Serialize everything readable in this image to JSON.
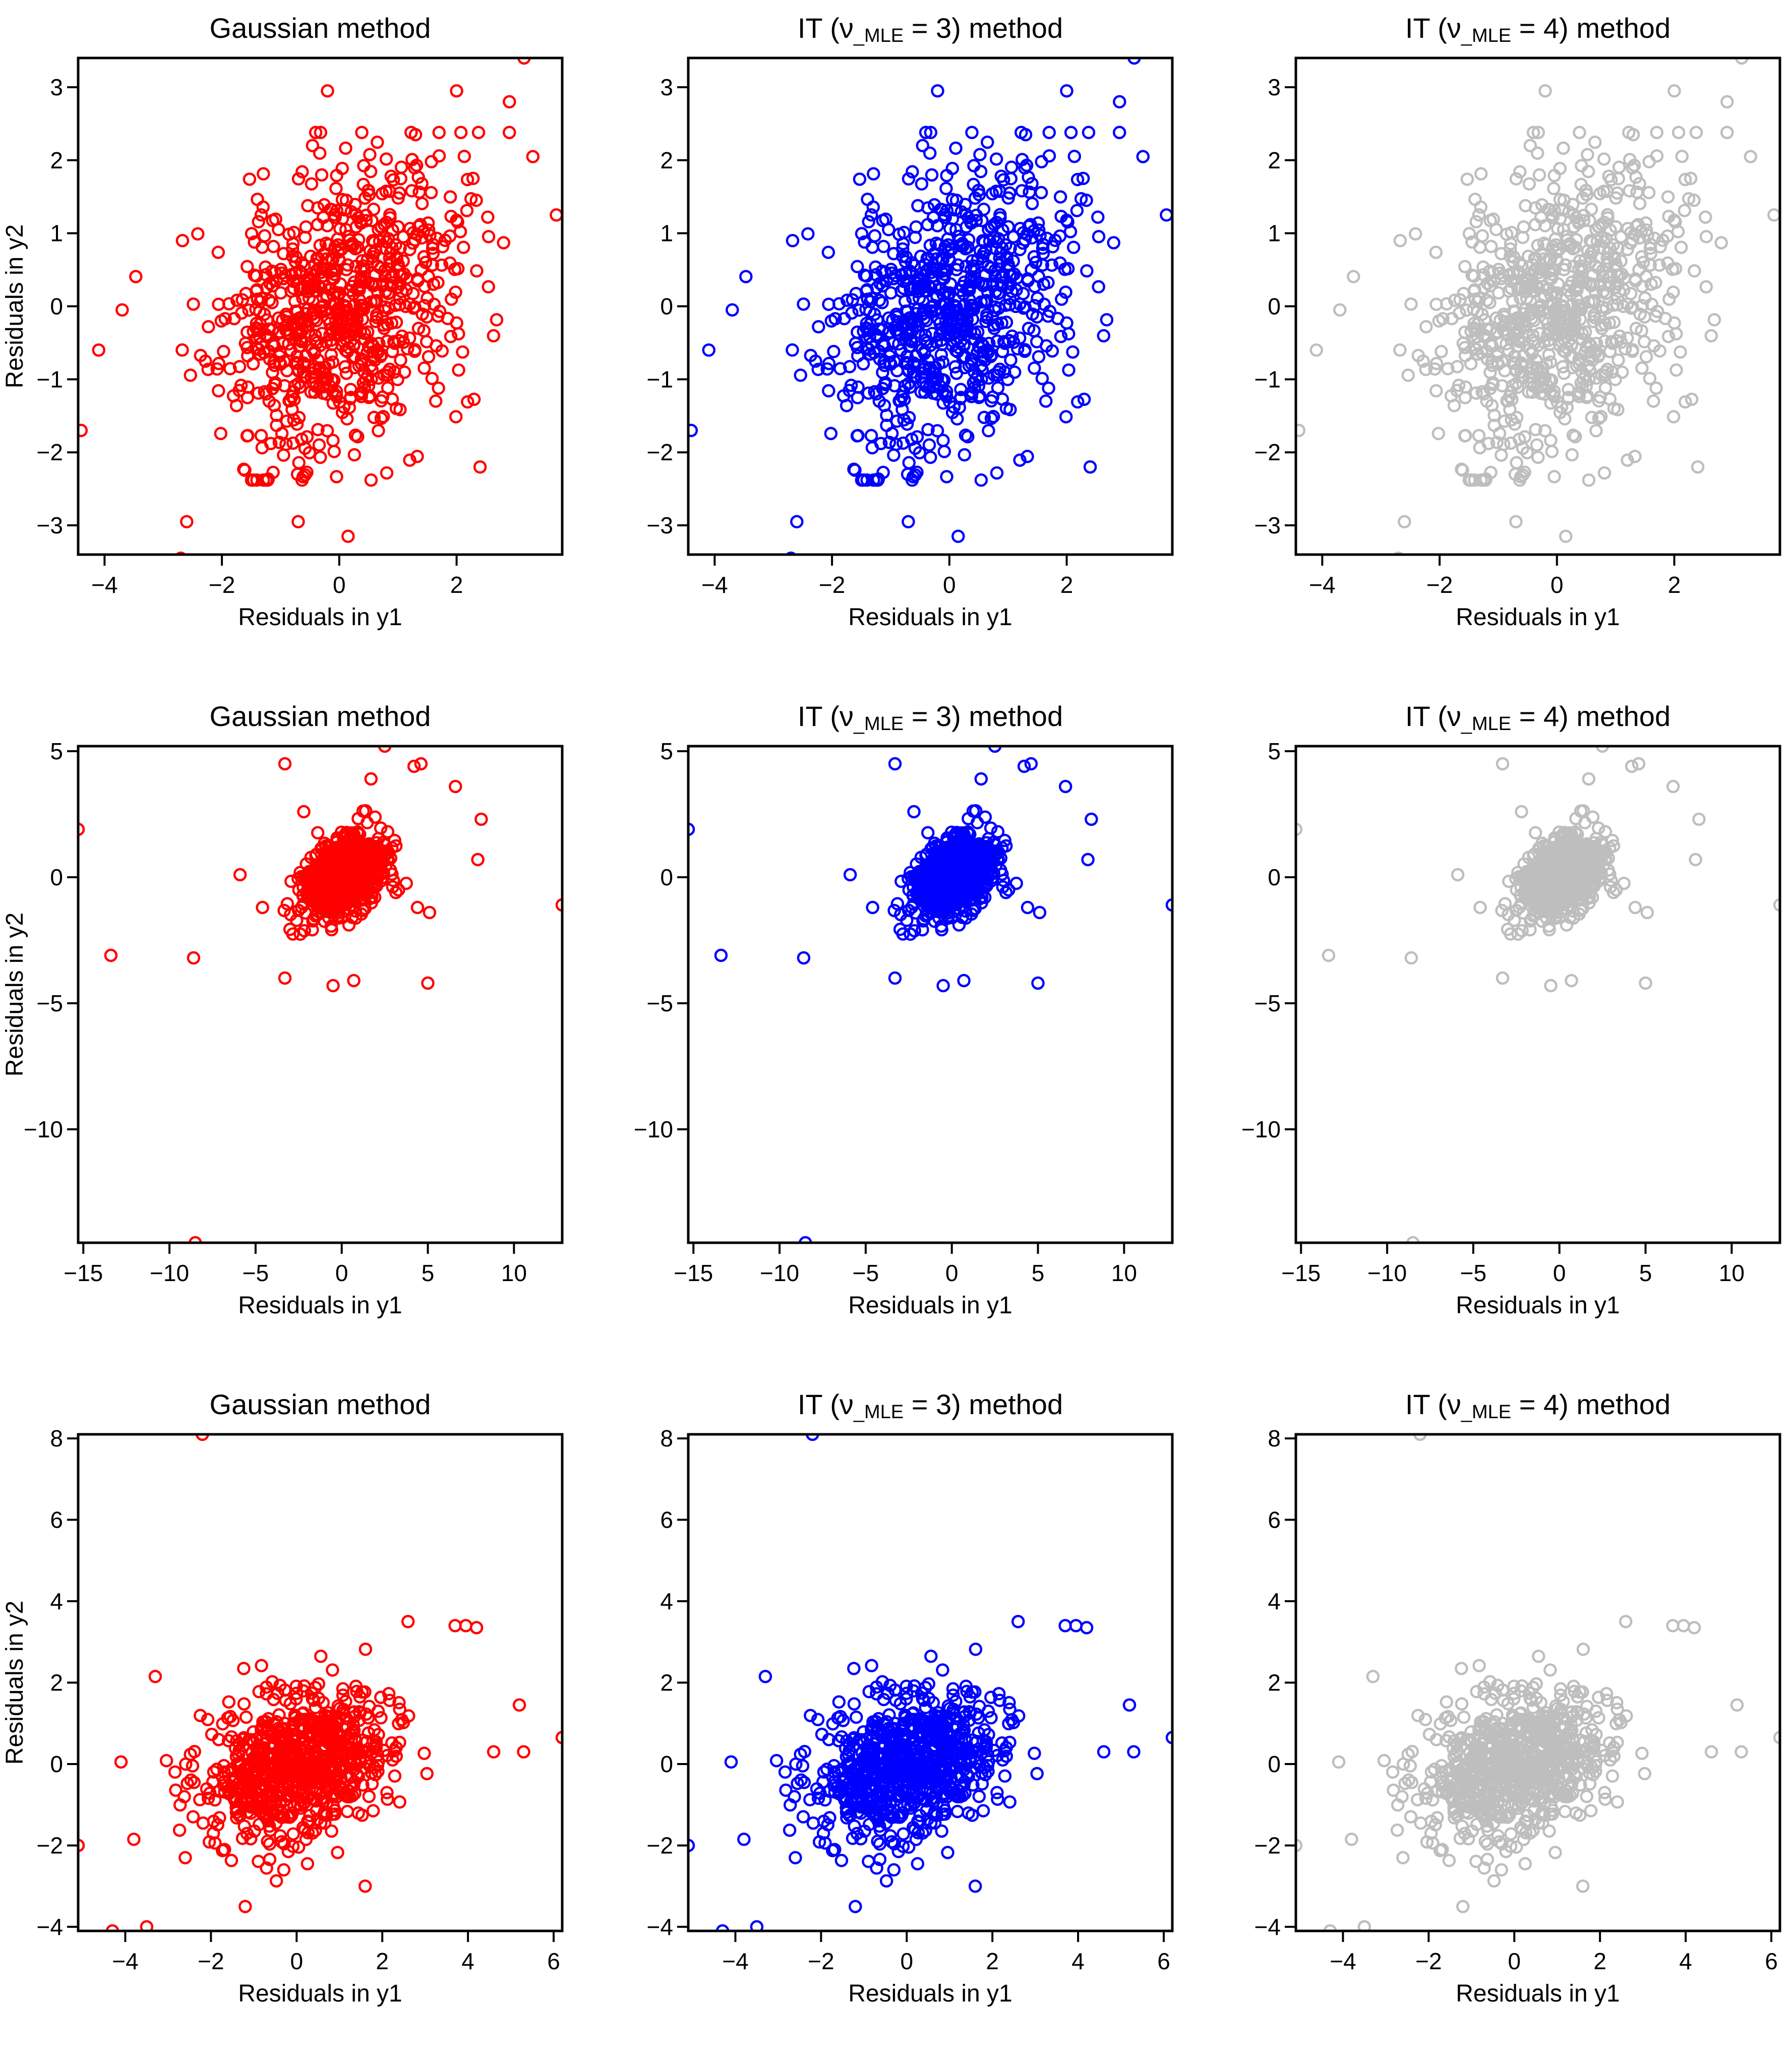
{
  "figure": {
    "rows": 3,
    "cols": 3,
    "colors": {
      "gaussian": "#ff0000",
      "it3": "#0000ff",
      "it4": "#bebebe",
      "axis": "#000000"
    }
  },
  "chart_data": [
    {
      "type": "scatter",
      "title": "Gaussian method",
      "title_parts": [],
      "xlabel": "Residuals in y1",
      "ylabel": "Residuals in y2",
      "xlim": [
        -4.45,
        3.8
      ],
      "ylim": [
        -3.4,
        3.4
      ],
      "xticks": [
        -4,
        -2,
        0,
        2
      ],
      "yticks": [
        -3,
        -2,
        -1,
        0,
        1,
        2,
        3
      ],
      "color_key": "gaussian",
      "cloud": {
        "n": 780,
        "sx": 1.0,
        "sy": 1.0,
        "rho": 0.28,
        "seed": 11
      },
      "points": [
        [
          -4.4,
          -1.7
        ],
        [
          -2.7,
          -3.45
        ],
        [
          3.15,
          3.4
        ],
        [
          0.15,
          -3.15
        ],
        [
          -0.2,
          2.95
        ],
        [
          3.7,
          1.25
        ],
        [
          2.4,
          -2.2
        ],
        [
          -2.6,
          -2.95
        ],
        [
          -0.7,
          -2.95
        ],
        [
          1.3,
          2.35
        ],
        [
          2.9,
          2.8
        ],
        [
          -3.7,
          -0.05
        ],
        [
          -4.1,
          -0.6
        ],
        [
          3.3,
          2.05
        ],
        [
          2.0,
          2.95
        ]
      ]
    },
    {
      "type": "scatter",
      "title": "",
      "title_parts": [
        "IT (ν",
        "_MLE",
        " = 3) method"
      ],
      "xlabel": "Residuals in y1",
      "ylabel": "",
      "xlim": [
        -4.45,
        3.8
      ],
      "ylim": [
        -3.4,
        3.4
      ],
      "xticks": [
        -4,
        -2,
        0,
        2
      ],
      "yticks": [
        -3,
        -2,
        -1,
        0,
        1,
        2,
        3
      ],
      "color_key": "it3",
      "cloud": {
        "n": 780,
        "sx": 1.0,
        "sy": 1.0,
        "rho": 0.28,
        "seed": 11
      },
      "points": [
        [
          -4.4,
          -1.7
        ],
        [
          -2.7,
          -3.45
        ],
        [
          3.15,
          3.4
        ],
        [
          0.15,
          -3.15
        ],
        [
          -0.2,
          2.95
        ],
        [
          3.7,
          1.25
        ],
        [
          2.4,
          -2.2
        ],
        [
          -2.6,
          -2.95
        ],
        [
          -0.7,
          -2.95
        ],
        [
          1.3,
          2.35
        ],
        [
          2.9,
          2.8
        ],
        [
          -3.7,
          -0.05
        ],
        [
          -4.1,
          -0.6
        ],
        [
          3.3,
          2.05
        ],
        [
          2.0,
          2.95
        ]
      ]
    },
    {
      "type": "scatter",
      "title": "",
      "title_parts": [
        "IT (ν",
        "_MLE",
        " = 4) method"
      ],
      "xlabel": "Residuals in y1",
      "ylabel": "",
      "xlim": [
        -4.45,
        3.8
      ],
      "ylim": [
        -3.4,
        3.4
      ],
      "xticks": [
        -4,
        -2,
        0,
        2
      ],
      "yticks": [
        -3,
        -2,
        -1,
        0,
        1,
        2,
        3
      ],
      "color_key": "it4",
      "cloud": {
        "n": 780,
        "sx": 1.0,
        "sy": 1.0,
        "rho": 0.28,
        "seed": 11
      },
      "points": [
        [
          -4.4,
          -1.7
        ],
        [
          -2.7,
          -3.45
        ],
        [
          3.15,
          3.4
        ],
        [
          0.15,
          -3.15
        ],
        [
          -0.2,
          2.95
        ],
        [
          3.7,
          1.25
        ],
        [
          2.4,
          -2.2
        ],
        [
          -2.6,
          -2.95
        ],
        [
          -0.7,
          -2.95
        ],
        [
          1.3,
          2.35
        ],
        [
          2.9,
          2.8
        ],
        [
          -3.7,
          -0.05
        ],
        [
          -4.1,
          -0.6
        ],
        [
          3.3,
          2.05
        ],
        [
          2.0,
          2.95
        ]
      ]
    },
    {
      "type": "scatter",
      "title": "Gaussian method",
      "title_parts": [],
      "xlabel": "Residuals in y1",
      "ylabel": "Residuals in y2",
      "xlim": [
        -15.3,
        12.8
      ],
      "ylim": [
        -14.5,
        5.2
      ],
      "xticks": [
        -15,
        -10,
        -5,
        0,
        5,
        10
      ],
      "yticks": [
        -10,
        -5,
        0,
        5
      ],
      "color_key": "gaussian",
      "cloud": {
        "n": 780,
        "sx": 1.1,
        "sy": 0.75,
        "rho": 0.35,
        "seed": 23
      },
      "points": [
        [
          -15.3,
          1.9
        ],
        [
          -13.4,
          -3.1
        ],
        [
          -8.6,
          -3.2
        ],
        [
          -8.5,
          -14.5
        ],
        [
          12.8,
          -1.1
        ],
        [
          8.1,
          2.3
        ],
        [
          7.9,
          0.7
        ],
        [
          6.6,
          3.6
        ],
        [
          5.0,
          -4.2
        ],
        [
          5.1,
          -1.4
        ],
        [
          4.6,
          4.5
        ],
        [
          4.2,
          4.4
        ],
        [
          2.5,
          5.2
        ],
        [
          -3.3,
          4.5
        ],
        [
          -5.9,
          0.1
        ],
        [
          -3.3,
          -4.0
        ],
        [
          -2.2,
          2.6
        ],
        [
          -0.5,
          -4.3
        ],
        [
          0.7,
          -4.1
        ],
        [
          1.7,
          3.9
        ],
        [
          3.3,
          -0.5
        ],
        [
          -4.6,
          -1.2
        ],
        [
          4.4,
          -1.2
        ]
      ]
    },
    {
      "type": "scatter",
      "title": "",
      "title_parts": [
        "IT (ν",
        "_MLE",
        " = 3) method"
      ],
      "xlabel": "Residuals in y1",
      "ylabel": "",
      "xlim": [
        -15.3,
        12.8
      ],
      "ylim": [
        -14.5,
        5.2
      ],
      "xticks": [
        -15,
        -10,
        -5,
        0,
        5,
        10
      ],
      "yticks": [
        -10,
        -5,
        0,
        5
      ],
      "color_key": "it3",
      "cloud": {
        "n": 780,
        "sx": 1.1,
        "sy": 0.75,
        "rho": 0.35,
        "seed": 23
      },
      "points": [
        [
          -15.3,
          1.9
        ],
        [
          -13.4,
          -3.1
        ],
        [
          -8.6,
          -3.2
        ],
        [
          -8.5,
          -14.5
        ],
        [
          12.8,
          -1.1
        ],
        [
          8.1,
          2.3
        ],
        [
          7.9,
          0.7
        ],
        [
          6.6,
          3.6
        ],
        [
          5.0,
          -4.2
        ],
        [
          5.1,
          -1.4
        ],
        [
          4.6,
          4.5
        ],
        [
          4.2,
          4.4
        ],
        [
          2.5,
          5.2
        ],
        [
          -3.3,
          4.5
        ],
        [
          -5.9,
          0.1
        ],
        [
          -3.3,
          -4.0
        ],
        [
          -2.2,
          2.6
        ],
        [
          -0.5,
          -4.3
        ],
        [
          0.7,
          -4.1
        ],
        [
          1.7,
          3.9
        ],
        [
          3.3,
          -0.5
        ],
        [
          -4.6,
          -1.2
        ],
        [
          4.4,
          -1.2
        ]
      ]
    },
    {
      "type": "scatter",
      "title": "",
      "title_parts": [
        "IT (ν",
        "_MLE",
        " = 4) method"
      ],
      "xlabel": "Residuals in y1",
      "ylabel": "",
      "xlim": [
        -15.3,
        12.8
      ],
      "ylim": [
        -14.5,
        5.2
      ],
      "xticks": [
        -15,
        -10,
        -5,
        0,
        5,
        10
      ],
      "yticks": [
        -10,
        -5,
        0,
        5
      ],
      "color_key": "it4",
      "cloud": {
        "n": 780,
        "sx": 1.1,
        "sy": 0.75,
        "rho": 0.35,
        "seed": 23
      },
      "points": [
        [
          -15.3,
          1.9
        ],
        [
          -13.4,
          -3.1
        ],
        [
          -8.6,
          -3.2
        ],
        [
          -8.5,
          -14.5
        ],
        [
          12.8,
          -1.1
        ],
        [
          8.1,
          2.3
        ],
        [
          7.9,
          0.7
        ],
        [
          6.6,
          3.6
        ],
        [
          5.0,
          -4.2
        ],
        [
          5.1,
          -1.4
        ],
        [
          4.6,
          4.5
        ],
        [
          4.2,
          4.4
        ],
        [
          2.5,
          5.2
        ],
        [
          -3.3,
          4.5
        ],
        [
          -5.9,
          0.1
        ],
        [
          -3.3,
          -4.0
        ],
        [
          -2.2,
          2.6
        ],
        [
          -0.5,
          -4.3
        ],
        [
          0.7,
          -4.1
        ],
        [
          1.7,
          3.9
        ],
        [
          3.3,
          -0.5
        ],
        [
          -4.6,
          -1.2
        ],
        [
          4.4,
          -1.2
        ]
      ]
    },
    {
      "type": "scatter",
      "title": "Gaussian method",
      "title_parts": [],
      "xlabel": "Residuals in y1",
      "ylabel": "Residuals in y2",
      "xlim": [
        -5.1,
        6.2
      ],
      "ylim": [
        -4.1,
        8.1
      ],
      "xticks": [
        -4,
        -2,
        0,
        2,
        4,
        6
      ],
      "yticks": [
        -4,
        -2,
        0,
        2,
        4,
        6,
        8
      ],
      "color_key": "gaussian",
      "cloud": {
        "n": 780,
        "sx": 1.05,
        "sy": 0.9,
        "rho": 0.3,
        "seed": 37
      },
      "points": [
        [
          -2.2,
          8.1
        ],
        [
          -5.1,
          -2.0
        ],
        [
          6.2,
          0.65
        ],
        [
          -3.5,
          -4.0
        ],
        [
          -4.3,
          -4.1
        ],
        [
          3.7,
          3.4
        ],
        [
          3.95,
          3.4
        ],
        [
          4.2,
          3.35
        ],
        [
          2.6,
          3.5
        ],
        [
          5.2,
          1.45
        ],
        [
          5.3,
          0.3
        ],
        [
          4.6,
          0.3
        ],
        [
          -3.3,
          2.15
        ],
        [
          1.6,
          -3.0
        ],
        [
          -1.2,
          -3.5
        ],
        [
          -2.6,
          -2.3
        ],
        [
          -0.3,
          -2.6
        ],
        [
          -3.8,
          -1.85
        ],
        [
          -4.1,
          0.05
        ]
      ]
    },
    {
      "type": "scatter",
      "title": "",
      "title_parts": [
        "IT (ν",
        "_MLE",
        " = 3) method"
      ],
      "xlabel": "Residuals in y1",
      "ylabel": "",
      "xlim": [
        -5.1,
        6.2
      ],
      "ylim": [
        -4.1,
        8.1
      ],
      "xticks": [
        -4,
        -2,
        0,
        2,
        4,
        6
      ],
      "yticks": [
        -4,
        -2,
        0,
        2,
        4,
        6,
        8
      ],
      "color_key": "it3",
      "cloud": {
        "n": 780,
        "sx": 1.05,
        "sy": 0.9,
        "rho": 0.3,
        "seed": 37
      },
      "points": [
        [
          -2.2,
          8.1
        ],
        [
          -5.1,
          -2.0
        ],
        [
          6.2,
          0.65
        ],
        [
          -3.5,
          -4.0
        ],
        [
          -4.3,
          -4.1
        ],
        [
          3.7,
          3.4
        ],
        [
          3.95,
          3.4
        ],
        [
          4.2,
          3.35
        ],
        [
          2.6,
          3.5
        ],
        [
          5.2,
          1.45
        ],
        [
          5.3,
          0.3
        ],
        [
          4.6,
          0.3
        ],
        [
          -3.3,
          2.15
        ],
        [
          1.6,
          -3.0
        ],
        [
          -1.2,
          -3.5
        ],
        [
          -2.6,
          -2.3
        ],
        [
          -0.3,
          -2.6
        ],
        [
          -3.8,
          -1.85
        ],
        [
          -4.1,
          0.05
        ]
      ]
    },
    {
      "type": "scatter",
      "title": "",
      "title_parts": [
        "IT (ν",
        "_MLE",
        " = 4) method"
      ],
      "xlabel": "Residuals in y1",
      "ylabel": "",
      "xlim": [
        -5.1,
        6.2
      ],
      "ylim": [
        -4.1,
        8.1
      ],
      "xticks": [
        -4,
        -2,
        0,
        2,
        4,
        6
      ],
      "yticks": [
        -4,
        -2,
        0,
        2,
        4,
        6,
        8
      ],
      "color_key": "it4",
      "cloud": {
        "n": 780,
        "sx": 1.05,
        "sy": 0.9,
        "rho": 0.3,
        "seed": 37
      },
      "points": [
        [
          -2.2,
          8.1
        ],
        [
          -5.1,
          -2.0
        ],
        [
          6.2,
          0.65
        ],
        [
          -3.5,
          -4.0
        ],
        [
          -4.3,
          -4.1
        ],
        [
          3.7,
          3.4
        ],
        [
          3.95,
          3.4
        ],
        [
          4.2,
          3.35
        ],
        [
          2.6,
          3.5
        ],
        [
          5.2,
          1.45
        ],
        [
          5.3,
          0.3
        ],
        [
          4.6,
          0.3
        ],
        [
          -3.3,
          2.15
        ],
        [
          1.6,
          -3.0
        ],
        [
          -1.2,
          -3.5
        ],
        [
          -2.6,
          -2.3
        ],
        [
          -0.3,
          -2.6
        ],
        [
          -3.8,
          -1.85
        ],
        [
          -4.1,
          0.05
        ]
      ]
    }
  ]
}
